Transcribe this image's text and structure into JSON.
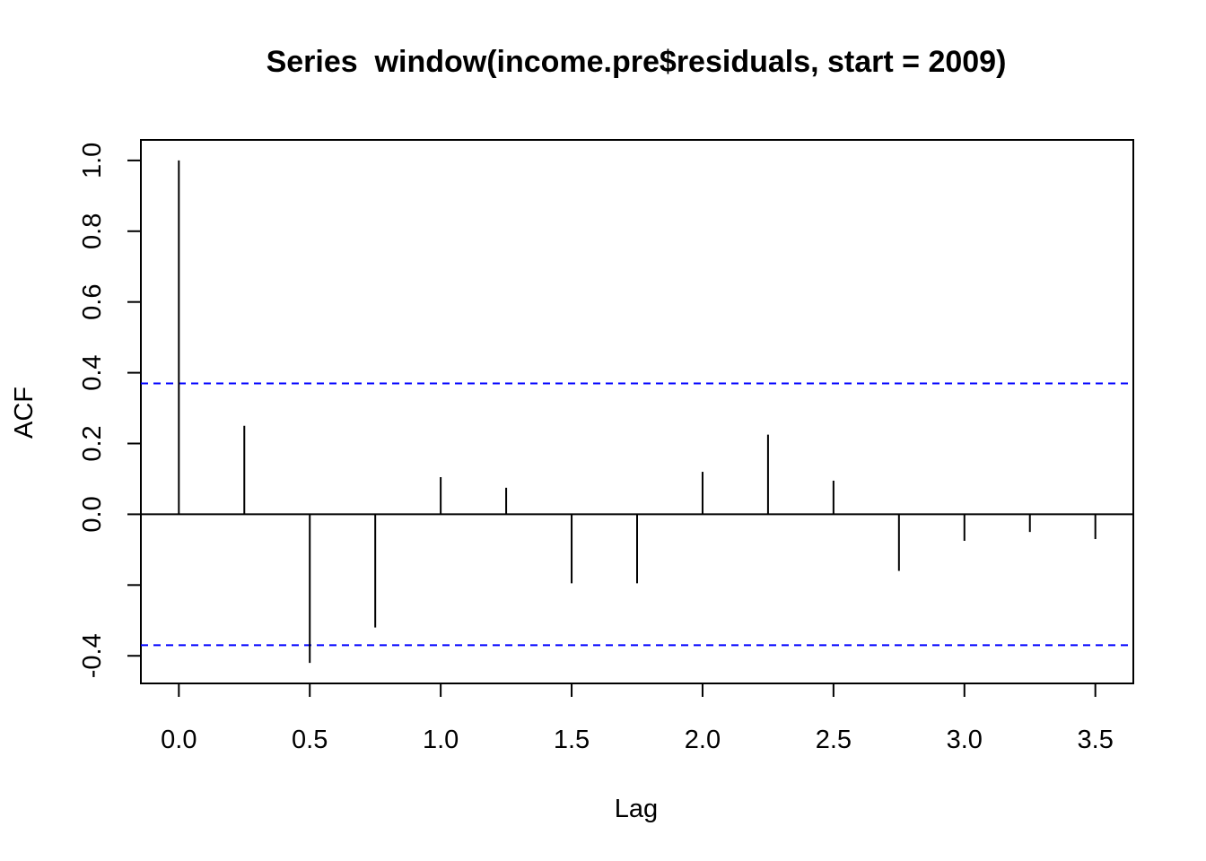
{
  "chart_data": {
    "type": "bar",
    "title": "Series  window(income.pre$residuals, start = 2009)",
    "xlabel": "Lag",
    "ylabel": "ACF",
    "x": [
      0.0,
      0.25,
      0.5,
      0.75,
      1.0,
      1.25,
      1.5,
      1.75,
      2.0,
      2.25,
      2.5,
      2.75,
      3.0,
      3.25,
      3.5
    ],
    "values": [
      1.0,
      0.25,
      -0.42,
      -0.32,
      0.105,
      0.075,
      -0.195,
      -0.195,
      0.12,
      0.225,
      0.095,
      -0.16,
      -0.075,
      -0.05,
      -0.07
    ],
    "confidence_band": 0.37,
    "xlim": [
      -0.145,
      3.645
    ],
    "ylim": [
      -0.478,
      1.058
    ],
    "x_ticks": [
      {
        "value": 0.0,
        "label": "0.0"
      },
      {
        "value": 0.5,
        "label": "0.5"
      },
      {
        "value": 1.0,
        "label": "1.0"
      },
      {
        "value": 1.5,
        "label": "1.5"
      },
      {
        "value": 2.0,
        "label": "2.0"
      },
      {
        "value": 2.5,
        "label": "2.5"
      },
      {
        "value": 3.0,
        "label": "3.0"
      },
      {
        "value": 3.5,
        "label": "3.5"
      }
    ],
    "y_ticks": [
      {
        "value": -0.4,
        "label": "-0.4"
      },
      {
        "value": -0.2,
        "label": ""
      },
      {
        "value": 0.0,
        "label": "0.0"
      },
      {
        "value": 0.2,
        "label": "0.2"
      },
      {
        "value": 0.4,
        "label": "0.4"
      },
      {
        "value": 0.6,
        "label": "0.6"
      },
      {
        "value": 0.8,
        "label": "0.8"
      },
      {
        "value": 1.0,
        "label": "1.0"
      }
    ],
    "grid": false,
    "colors": {
      "bars": "#000000",
      "confidence_lines": "#0000ff",
      "axis": "#000000"
    }
  }
}
